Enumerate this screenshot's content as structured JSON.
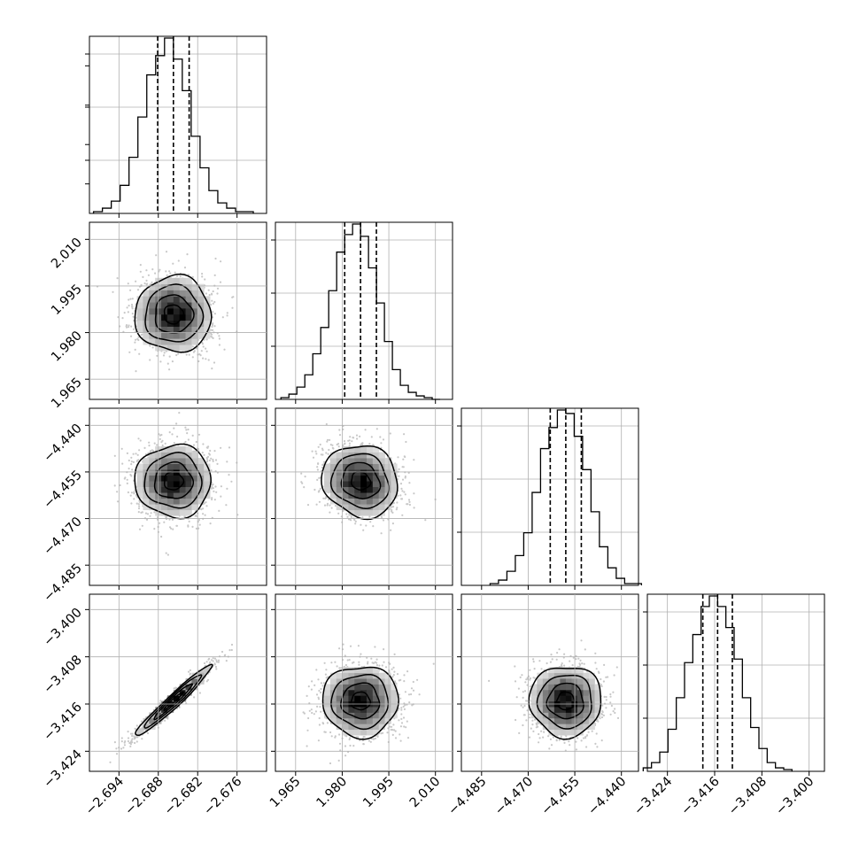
{
  "chart_data": {
    "type": "corner",
    "grid": true,
    "parameters": [
      {
        "range": [
          -2.6985,
          -2.6715
        ],
        "ticks": [
          -2.694,
          -2.688,
          -2.682,
          -2.676
        ],
        "tick_labels": [
          "−2.694",
          "−2.688",
          "−2.682",
          "−2.676"
        ],
        "mean": -2.6857,
        "sigma": 0.0029,
        "quantiles": [
          -2.6881,
          -2.6857,
          -2.6833
        ]
      },
      {
        "range": [
          1.9585,
          2.0155
        ],
        "ticks": [
          1.965,
          1.98,
          1.995,
          2.01
        ],
        "tick_labels": [
          "1.965",
          "1.980",
          "1.995",
          "2.010"
        ],
        "mean": 1.9859,
        "sigma": 0.0061,
        "quantiles": [
          1.9808,
          1.9859,
          1.991
        ]
      },
      {
        "range": [
          -4.4915,
          -4.4345
        ],
        "ticks": [
          -4.485,
          -4.47,
          -4.455,
          -4.44
        ],
        "tick_labels": [
          "−4.485",
          "−4.470",
          "−4.455",
          "−4.440"
        ],
        "mean": -4.4579,
        "sigma": 0.0058,
        "quantiles": [
          -4.4629,
          -4.4579,
          -4.4529
        ]
      },
      {
        "range": [
          -3.4274,
          -3.3974
        ],
        "ticks": [
          -3.424,
          -3.416,
          -3.408,
          -3.4
        ],
        "tick_labels": [
          "−3.424",
          "−3.416",
          "−3.408",
          "−3.400"
        ],
        "mean": -3.4155,
        "sigma": 0.003,
        "quantiles": [
          -3.418,
          -3.4155,
          -3.413
        ]
      }
    ],
    "histograms": [
      [
        1,
        3,
        7,
        16,
        32,
        55,
        79,
        90,
        100,
        88,
        70,
        44,
        26,
        13,
        6,
        3,
        1,
        1
      ],
      [
        1,
        3,
        7,
        14,
        26,
        41,
        62,
        84,
        94,
        100,
        93,
        75,
        55,
        33,
        17,
        8,
        4,
        2,
        1,
        0
      ],
      [
        1,
        3,
        8,
        17,
        30,
        53,
        78,
        90,
        100,
        98,
        85,
        66,
        42,
        22,
        10,
        4,
        1,
        1
      ],
      [
        2,
        5,
        11,
        24,
        42,
        62,
        78,
        94,
        100,
        94,
        82,
        64,
        42,
        25,
        13,
        5,
        2,
        1
      ]
    ],
    "correlations": [
      {
        "pair": [
          0,
          1
        ],
        "rho": 0
      },
      {
        "pair": [
          0,
          2
        ],
        "rho": 0
      },
      {
        "pair": [
          1,
          2
        ],
        "rho": -0.1
      },
      {
        "pair": [
          0,
          3
        ],
        "rho": 0.97
      },
      {
        "pair": [
          1,
          3
        ],
        "rho": 0
      },
      {
        "pair": [
          2,
          3
        ],
        "rho": 0
      }
    ],
    "contour_levels_sigma": [
      0.5,
      1.0,
      1.5,
      2.0
    ],
    "xlabel": "",
    "ylabel": ""
  }
}
